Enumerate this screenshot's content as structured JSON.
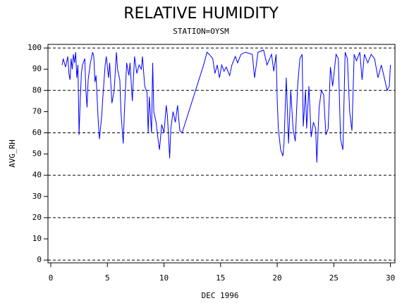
{
  "chart_data": {
    "type": "line",
    "title": "RELATIVE HUMIDITY",
    "subtitle": "STATION=OYSM",
    "x_label": "DEC 1996",
    "y_label": "AVG_RH",
    "xlim": [
      -0.25,
      30.4
    ],
    "ylim": [
      -1.3,
      101.7
    ],
    "xticks": [
      0,
      5,
      10,
      15,
      20,
      25,
      30
    ],
    "yticks": [
      0,
      10,
      20,
      30,
      40,
      50,
      60,
      70,
      80,
      90,
      100
    ],
    "grid_lines": [
      0,
      20,
      40,
      60,
      80,
      100
    ],
    "series": [
      {
        "name": "AVG_RH",
        "color": "#0000ff",
        "x": [
          1.0,
          1.1,
          1.3,
          1.5,
          1.6,
          1.7,
          1.8,
          1.9,
          2.0,
          2.1,
          2.2,
          2.3,
          2.4,
          2.5,
          2.6,
          2.7,
          2.8,
          3.0,
          3.1,
          3.2,
          3.3,
          3.5,
          3.7,
          3.8,
          3.9,
          4.0,
          4.2,
          4.3,
          4.5,
          4.6,
          4.8,
          4.9,
          5.1,
          5.2,
          5.4,
          5.6,
          5.8,
          5.9,
          6.1,
          6.2,
          6.4,
          6.5,
          6.7,
          6.9,
          7.0,
          7.2,
          7.4,
          7.6,
          7.8,
          8.0,
          8.1,
          8.3,
          8.5,
          8.6,
          8.7,
          8.9,
          9.0,
          9.1,
          9.3,
          9.5,
          9.6,
          9.8,
          10.0,
          10.2,
          10.3,
          10.5,
          10.6,
          10.8,
          11.0,
          11.2,
          11.4,
          11.6,
          13.5,
          13.8,
          14.0,
          14.3,
          14.5,
          14.7,
          14.9,
          15.1,
          15.3,
          15.5,
          15.8,
          16.0,
          16.3,
          16.5,
          16.8,
          17.2,
          17.8,
          18.0,
          18.3,
          18.8,
          19.1,
          19.5,
          19.7,
          19.9,
          20.0,
          20.1,
          20.3,
          20.5,
          20.6,
          20.8,
          21.0,
          21.2,
          21.4,
          21.6,
          21.8,
          22.0,
          22.2,
          22.3,
          22.5,
          22.6,
          22.8,
          23.0,
          23.2,
          23.4,
          23.5,
          23.7,
          23.9,
          24.1,
          24.3,
          24.5,
          24.7,
          24.9,
          25.2,
          25.4,
          25.6,
          25.8,
          26.0,
          26.2,
          26.4,
          26.6,
          26.8,
          27.0,
          27.3,
          27.5,
          27.7,
          28.0,
          28.3,
          28.6,
          28.9,
          29.2,
          29.5,
          29.7,
          29.9,
          30.0
        ],
        "values": [
          92,
          95,
          91,
          96,
          88,
          85,
          95,
          90,
          97,
          93,
          98,
          86,
          92,
          59,
          75,
          88,
          92,
          95,
          80,
          72,
          85,
          93,
          98,
          96,
          84,
          87,
          65,
          57,
          68,
          77,
          92,
          96,
          86,
          93,
          74,
          80,
          98,
          90,
          85,
          70,
          55,
          70,
          93,
          87,
          93,
          75,
          96,
          88,
          92,
          90,
          96,
          82,
          79,
          60,
          77,
          60,
          93,
          70,
          65,
          56,
          52,
          64,
          60,
          73,
          68,
          48,
          62,
          70,
          65,
          73,
          61,
          60,
          92,
          98,
          97,
          95,
          88,
          92,
          86,
          92,
          89,
          91,
          87,
          92,
          96,
          93,
          97,
          98,
          97,
          86,
          98,
          99,
          92,
          97,
          89,
          97,
          75,
          62,
          52,
          49,
          55,
          86,
          55,
          80,
          62,
          56,
          82,
          95,
          97,
          63,
          80,
          62,
          82,
          58,
          65,
          62,
          46,
          72,
          80,
          78,
          59,
          62,
          91,
          82,
          97,
          95,
          57,
          52,
          98,
          95,
          70,
          61,
          97,
          94,
          98,
          85,
          97,
          93,
          97,
          95,
          86,
          92,
          85,
          80,
          82,
          92
        ]
      }
    ]
  }
}
